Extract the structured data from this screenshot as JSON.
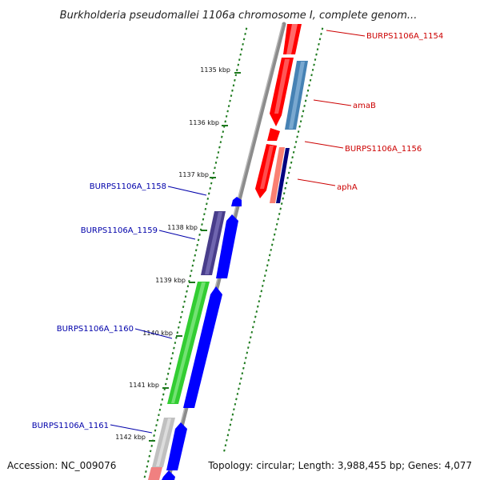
{
  "title": "Burkholderia pseudomallei 1106a chromosome I, complete genom...",
  "footer": {
    "accession": "Accession: NC_009076",
    "topology": "Topology: circular; Length: 3,988,455 bp; Genes: 4,077"
  },
  "scale_labels": [
    "1135 kbp",
    "1136 kbp",
    "1137 kbp",
    "1138 kbp",
    "1139 kbp",
    "1140 kbp",
    "1141 kbp",
    "1142 kbp"
  ],
  "gene_labels": {
    "forward": [
      "BURPS1106A_1154",
      "amaB",
      "BURPS1106A_1156",
      "aphA"
    ],
    "reverse": [
      "BURPS1106A_1158",
      "BURPS1106A_1159",
      "BURPS1106A_1160",
      "BURPS1106A_1161"
    ]
  },
  "colors": {
    "backbone": "#8c8c8c",
    "ticks": "#1e7a1e",
    "red": "#ff0000",
    "steelblue": "#4682b4",
    "salmon": "#fa8072",
    "navy": "#000080",
    "blue": "#0000ff",
    "darkslateblue": "#483d8b",
    "green": "#32cd32",
    "silver": "#c0c0c0",
    "lightcoral": "#f08080"
  }
}
